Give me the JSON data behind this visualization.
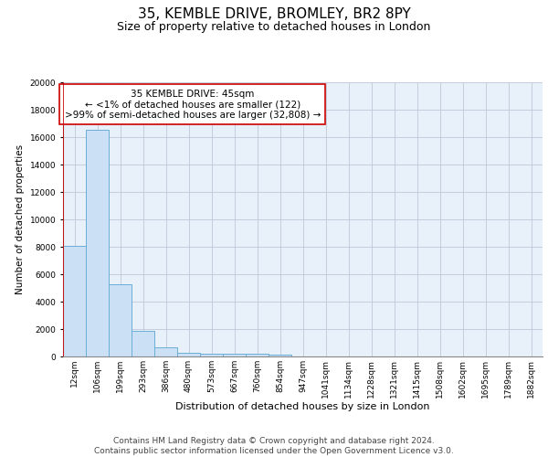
{
  "title1": "35, KEMBLE DRIVE, BROMLEY, BR2 8PY",
  "title2": "Size of property relative to detached houses in London",
  "xlabel": "Distribution of detached houses by size in London",
  "ylabel": "Number of detached properties",
  "categories": [
    "12sqm",
    "106sqm",
    "199sqm",
    "293sqm",
    "386sqm",
    "480sqm",
    "573sqm",
    "667sqm",
    "760sqm",
    "854sqm",
    "947sqm",
    "1041sqm",
    "1134sqm",
    "1228sqm",
    "1321sqm",
    "1415sqm",
    "1508sqm",
    "1602sqm",
    "1695sqm",
    "1789sqm",
    "1882sqm"
  ],
  "values": [
    8100,
    16500,
    5300,
    1850,
    700,
    300,
    220,
    190,
    170,
    150,
    0,
    0,
    0,
    0,
    0,
    0,
    0,
    0,
    0,
    0,
    0
  ],
  "bar_color": "#cce0f5",
  "bar_edge_color": "#6aaed6",
  "vline_color": "#cc0000",
  "annotation_text": "35 KEMBLE DRIVE: 45sqm\n← <1% of detached houses are smaller (122)\n>99% of semi-detached houses are larger (32,808) →",
  "annotation_box_color": "#ffffff",
  "annotation_box_edge": "#cc0000",
  "ylim": [
    0,
    20000
  ],
  "yticks": [
    0,
    2000,
    4000,
    6000,
    8000,
    10000,
    12000,
    14000,
    16000,
    18000,
    20000
  ],
  "bg_color": "#e8f0fa",
  "footer1": "Contains HM Land Registry data © Crown copyright and database right 2024.",
  "footer2": "Contains public sector information licensed under the Open Government Licence v3.0.",
  "title1_fontsize": 11,
  "title2_fontsize": 9,
  "annotation_fontsize": 7.5,
  "footer_fontsize": 6.5,
  "ylabel_fontsize": 7.5,
  "xlabel_fontsize": 8,
  "tick_fontsize": 6.5
}
